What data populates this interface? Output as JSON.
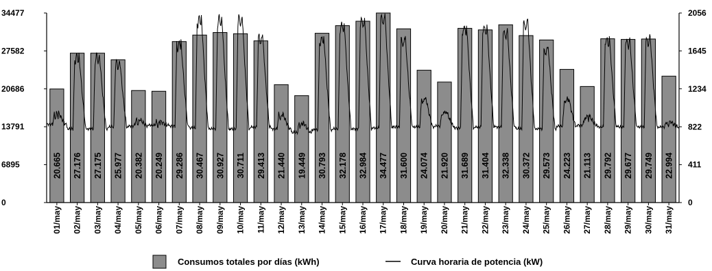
{
  "chart_data": {
    "type": "bar",
    "categories": [
      "01/may",
      "02/may",
      "03/may",
      "04/may",
      "05/may",
      "06/may",
      "07/may",
      "08/may",
      "09/may",
      "10/may",
      "11/may",
      "12/may",
      "13/may",
      "14/may",
      "15/may",
      "16/may",
      "17/may",
      "18/may",
      "19/may",
      "20/may",
      "21/may",
      "22/may",
      "23/may",
      "24/may",
      "25/may",
      "26/may",
      "27/may",
      "28/may",
      "29/may",
      "30/may",
      "31/may"
    ],
    "series": [
      {
        "name": "Consumos totales por días (kWh)",
        "type": "bar",
        "axis": "left",
        "color": "#8c8c8c",
        "values": [
          20665,
          27176,
          27175,
          25977,
          20382,
          20249,
          29286,
          30467,
          30927,
          30711,
          29413,
          21440,
          19449,
          30793,
          32178,
          32984,
          34477,
          31600,
          24074,
          21920,
          31689,
          31404,
          32338,
          30372,
          29573,
          24223,
          21113,
          29792,
          29677,
          29749,
          22994
        ],
        "labels": [
          "20.665",
          "27.176",
          "27.175",
          "25.977",
          "20.382",
          "20.249",
          "29.286",
          "30.467",
          "30.927",
          "30.711",
          "29.413",
          "21.440",
          "19.449",
          "30.793",
          "32.178",
          "32.984",
          "34.477",
          "31.600",
          "24.074",
          "21.920",
          "31.689",
          "31.404",
          "32.338",
          "30.372",
          "29.573",
          "24.223",
          "21.113",
          "29.792",
          "29.677",
          "29.749",
          "22.994"
        ]
      },
      {
        "name": "Curva horaria de potencia (kW)",
        "type": "line",
        "axis": "right",
        "color": "#000000",
        "daily_peak": [
          975,
          1610,
          1610,
          1540,
          900,
          880,
          1750,
          2030,
          2030,
          2030,
          1820,
          960,
          870,
          1810,
          1960,
          2010,
          2040,
          1790,
          1140,
          1000,
          1930,
          1930,
          1880,
          1980,
          1690,
          1140,
          950,
          1800,
          1780,
          1800,
          880
        ],
        "daily_base": [
          850,
          800,
          800,
          820,
          830,
          840,
          830,
          810,
          800,
          800,
          820,
          800,
          760,
          790,
          800,
          800,
          810,
          820,
          820,
          830,
          810,
          820,
          820,
          800,
          800,
          830,
          840,
          820,
          820,
          820,
          820
        ]
      }
    ],
    "y_left": {
      "ticks": [
        "34477",
        "27582",
        "20686",
        "13791",
        "6895",
        "0"
      ],
      "tick_values": [
        34477,
        27582,
        20686,
        13791,
        6895,
        0
      ],
      "range": [
        0,
        34477
      ]
    },
    "y_right": {
      "ticks": [
        "2056",
        "1645",
        "1234",
        "822",
        "411",
        "0"
      ],
      "tick_values": [
        2056,
        1645,
        1234,
        822,
        411,
        0
      ],
      "range": [
        0,
        2056
      ]
    },
    "grid": false,
    "legend_position": "bottom-center"
  }
}
